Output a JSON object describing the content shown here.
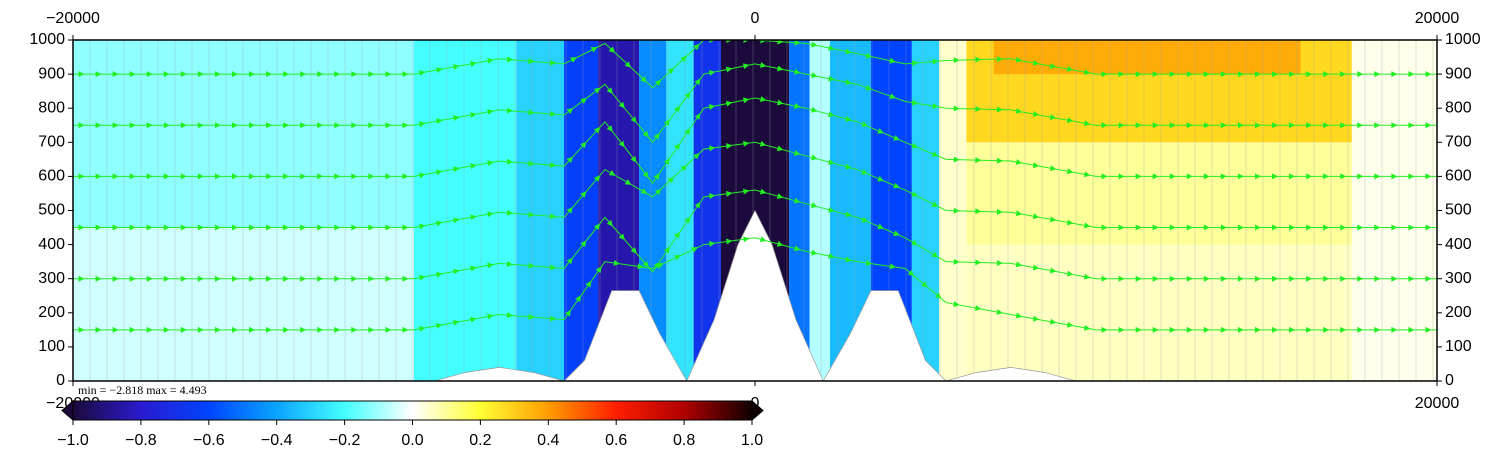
{
  "chart_data": {
    "type": "section",
    "xlim": [
      -20000,
      20000
    ],
    "ylim": [
      0,
      1000
    ],
    "xticks_top": [
      {
        "value": -20000,
        "label": "−20000"
      },
      0,
      20000
    ],
    "xticks_bottom": [
      {
        "value": -20000,
        "label": "−20000"
      },
      0,
      20000
    ],
    "yticks": [
      0,
      100,
      200,
      300,
      400,
      500,
      600,
      700,
      800,
      900,
      1000
    ],
    "annotation": "min = −2.818    max = 4.493",
    "colormap": [
      {
        "value": -1.0,
        "color": "#1c0a3c"
      },
      {
        "value": -0.8,
        "color": "#2a1ad0"
      },
      {
        "value": -0.6,
        "color": "#0044ff"
      },
      {
        "value": -0.4,
        "color": "#0aa4ff"
      },
      {
        "value": -0.2,
        "color": "#44ffff"
      },
      {
        "value": 0.0,
        "color": "#ffffff"
      },
      {
        "value": 0.2,
        "color": "#ffff33"
      },
      {
        "value": 0.4,
        "color": "#ff9d00"
      },
      {
        "value": 0.6,
        "color": "#ff1e00"
      },
      {
        "value": 0.8,
        "color": "#b00000"
      },
      {
        "value": 1.0,
        "color": "#100000"
      }
    ],
    "colorbar_lim": [
      -1.0,
      1.0
    ],
    "colorbar_ticks": [
      {
        "value": -1.0,
        "label": "−1.0"
      },
      {
        "value": -0.8,
        "label": "−0.8"
      },
      {
        "value": -0.6,
        "label": "−0.6"
      },
      {
        "value": -0.4,
        "label": "−0.4"
      },
      {
        "value": -0.2,
        "label": "−0.2"
      },
      {
        "value": 0.0,
        "label": "0.0"
      },
      {
        "value": 0.2,
        "label": "0.2"
      },
      {
        "value": 0.4,
        "label": "0.4"
      },
      {
        "value": 0.6,
        "label": "0.6"
      },
      {
        "value": 0.8,
        "label": "0.8"
      },
      {
        "value": 1.0,
        "label": "1.0"
      }
    ],
    "field": [
      {
        "x": [
          -20000,
          -10000
        ],
        "y": [
          450,
          1000
        ],
        "value": -0.12
      },
      {
        "x": [
          -20000,
          -10000
        ],
        "y": [
          0,
          450
        ],
        "value": -0.05
      },
      {
        "x": [
          -10000,
          -7000
        ],
        "y": [
          0,
          1000
        ],
        "value": -0.2
      },
      {
        "x": [
          -7000,
          -5600
        ],
        "y": [
          0,
          1000
        ],
        "value": -0.3
      },
      {
        "x": [
          -5600,
          -4600
        ],
        "y": [
          0,
          1000
        ],
        "value": -0.62
      },
      {
        "x": [
          -4600,
          -3400
        ],
        "y": [
          0,
          1000
        ],
        "value": -0.85
      },
      {
        "x": [
          -3400,
          -2600
        ],
        "y": [
          0,
          1000
        ],
        "value": -0.45
      },
      {
        "x": [
          -2600,
          -1800
        ],
        "y": [
          0,
          1000
        ],
        "value": -0.26
      },
      {
        "x": [
          -1800,
          -1000
        ],
        "y": [
          0,
          1000
        ],
        "value": -0.68
      },
      {
        "x": [
          -1000,
          1000
        ],
        "y": [
          0,
          1000
        ],
        "value": -1.0
      },
      {
        "x": [
          1000,
          1600
        ],
        "y": [
          0,
          1000
        ],
        "value": -0.5
      },
      {
        "x": [
          1600,
          2200
        ],
        "y": [
          0,
          1000
        ],
        "value": -0.08
      },
      {
        "x": [
          2200,
          3400
        ],
        "y": [
          0,
          1000
        ],
        "value": -0.35
      },
      {
        "x": [
          3400,
          4600
        ],
        "y": [
          0,
          1000
        ],
        "value": -0.6
      },
      {
        "x": [
          4600,
          5400
        ],
        "y": [
          0,
          1000
        ],
        "value": -0.3
      },
      {
        "x": [
          5400,
          6200
        ],
        "y": [
          0,
          1000
        ],
        "value": 0.05
      },
      {
        "x": [
          6200,
          20000
        ],
        "y": [
          0,
          400
        ],
        "value": 0.06
      },
      {
        "x": [
          6200,
          20000
        ],
        "y": [
          400,
          700
        ],
        "value": 0.1
      },
      {
        "x": [
          6200,
          20000
        ],
        "y": [
          700,
          1000
        ],
        "value": 0.28
      },
      {
        "x": [
          7000,
          16000
        ],
        "y": [
          900,
          1000
        ],
        "value": 0.37
      },
      {
        "x": [
          17500,
          20000
        ],
        "y": [
          0,
          1000
        ],
        "value": 0.02
      }
    ],
    "terrain": {
      "x": [
        -20000,
        -9400,
        -8500,
        -7500,
        -6500,
        -5600,
        -5000,
        -4200,
        -3400,
        -2800,
        -2000,
        -1200,
        -500,
        0,
        500,
        1200,
        2000,
        2800,
        3400,
        4200,
        5000,
        5600,
        6500,
        7500,
        8500,
        9400,
        20000
      ],
      "values": [
        0,
        0,
        25,
        40,
        25,
        0,
        60,
        265,
        265,
        140,
        0,
        180,
        400,
        500,
        400,
        180,
        0,
        140,
        265,
        265,
        60,
        0,
        25,
        40,
        25,
        0,
        0
      ]
    },
    "streamlines": {
      "x": [
        -20000,
        -10000,
        -7500,
        -5600,
        -4400,
        -3000,
        -1500,
        0,
        1500,
        3000,
        4400,
        5600,
        7500,
        10000,
        20000
      ],
      "series": [
        {
          "values": [
            150,
            150,
            195,
            180,
            350,
            330,
            400,
            420,
            380,
            350,
            330,
            230,
            195,
            150,
            150
          ]
        },
        {
          "values": [
            300,
            300,
            345,
            330,
            480,
            320,
            540,
            560,
            520,
            480,
            420,
            350,
            345,
            300,
            300
          ]
        },
        {
          "values": [
            450,
            450,
            495,
            480,
            620,
            540,
            680,
            700,
            660,
            620,
            560,
            500,
            495,
            450,
            450
          ]
        },
        {
          "values": [
            600,
            600,
            645,
            630,
            760,
            580,
            800,
            830,
            800,
            760,
            700,
            650,
            645,
            600,
            600
          ]
        },
        {
          "values": [
            750,
            750,
            795,
            780,
            870,
            700,
            900,
            930,
            900,
            870,
            820,
            800,
            795,
            750,
            750
          ]
        },
        {
          "values": [
            900,
            900,
            945,
            930,
            990,
            860,
            1000,
            1000,
            990,
            960,
            930,
            940,
            945,
            900,
            900
          ]
        }
      ],
      "color": "#22ee22"
    }
  }
}
